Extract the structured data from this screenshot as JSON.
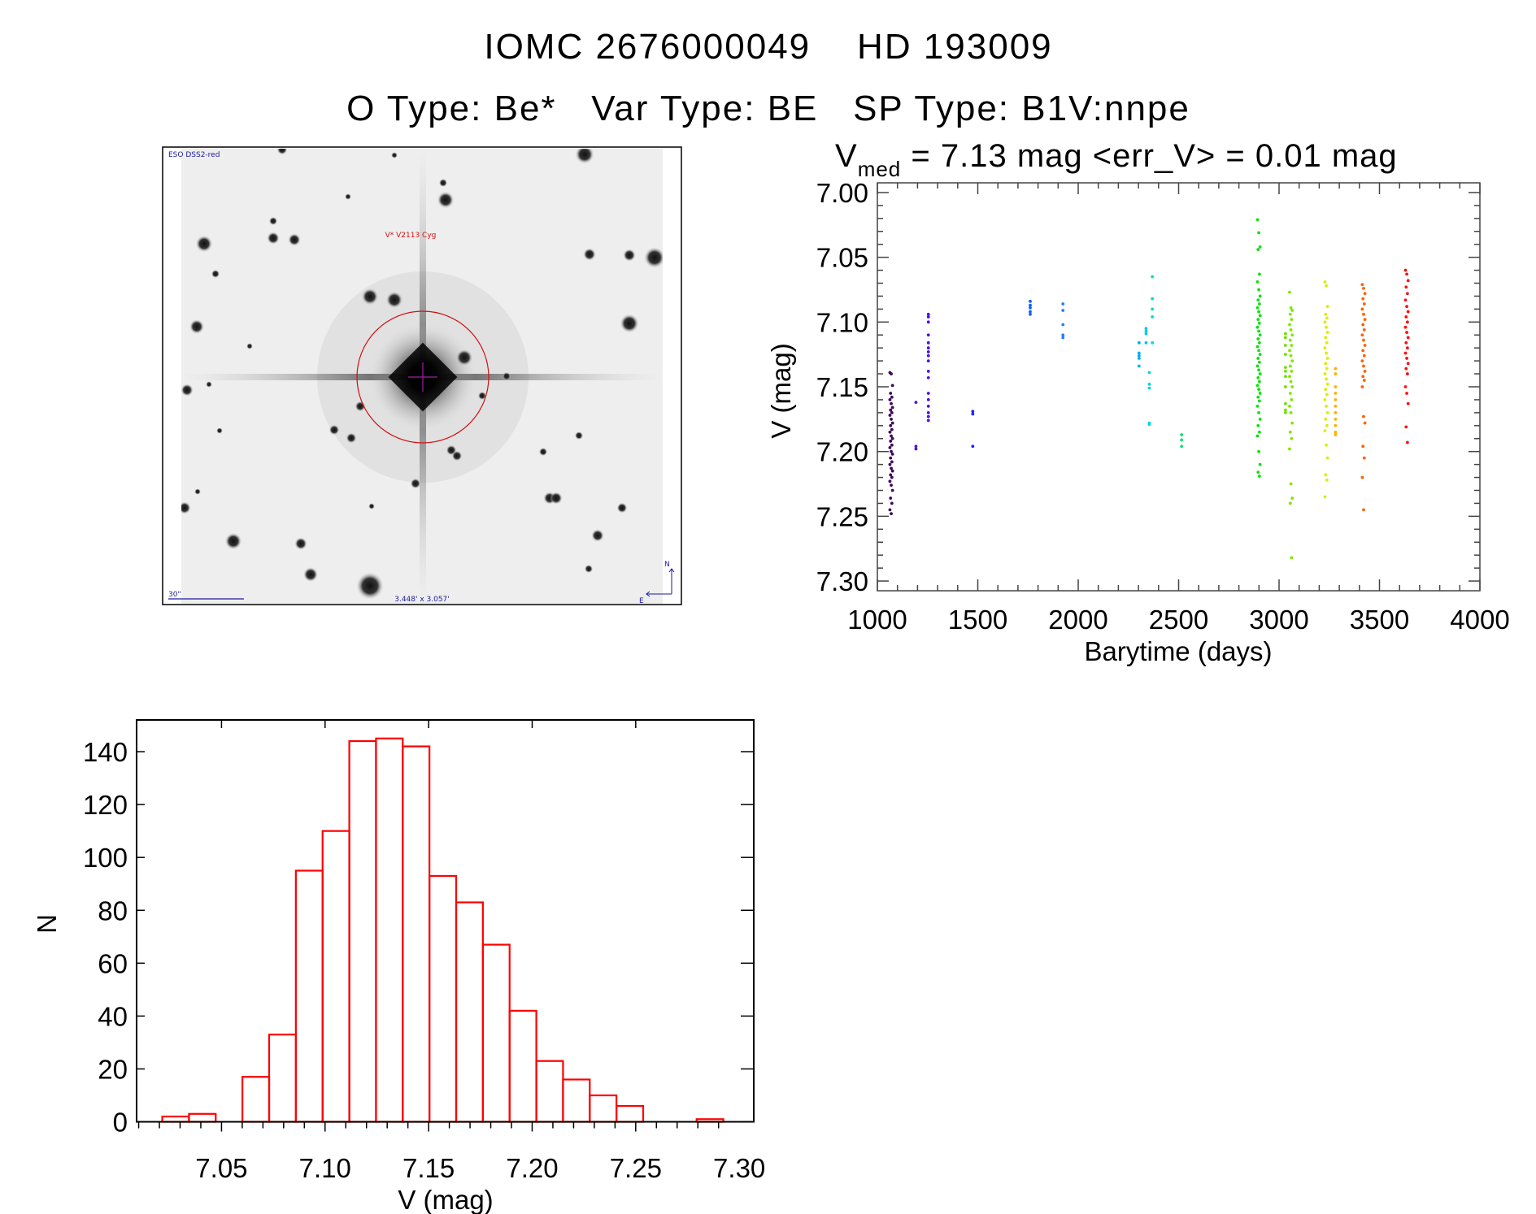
{
  "header": {
    "title": "IOMC 2676000049    HD 193009",
    "subtitle": "O Type: Be*   Var Type: BE   SP Type: B1V:nnpe"
  },
  "finder_chart": {
    "survey_label": "ESO DSS2-red",
    "target_label": "V* V2113 Cyg",
    "scale_label": "30\"",
    "fov_label": "3.448' x 3.057'",
    "north_label": "N",
    "east_label": "E"
  },
  "chart_data": [
    {
      "type": "scatter",
      "title_prefix": "V",
      "title_sub": "med",
      "title_rest": " = 7.13 mag <err_V> = 0.01 mag",
      "xlabel": "Barytime (days)",
      "ylabel": "V (mag)",
      "xlim": [
        1000,
        4000
      ],
      "ylim": [
        6.9925,
        7.3075
      ],
      "y_inverted": true,
      "xticks": [
        "1000",
        "1500",
        "2000",
        "2500",
        "3000",
        "3500",
        "4000"
      ],
      "yticks": [
        "7.00",
        "7.05",
        "7.10",
        "7.15",
        "7.20",
        "7.25",
        "7.30"
      ],
      "series": [
        {
          "t": 1069,
          "color": "#3c0a5a",
          "v": [
            7.139,
            7.14,
            7.149,
            7.155,
            7.158,
            7.16,
            7.163,
            7.166,
            7.168,
            7.17,
            7.172,
            7.175,
            7.178,
            7.18,
            7.183,
            7.185,
            7.188,
            7.19,
            7.192,
            7.195,
            7.197,
            7.2,
            7.202,
            7.205,
            7.208,
            7.21,
            7.213,
            7.215,
            7.218,
            7.22,
            7.223,
            7.226,
            7.23,
            7.236,
            7.24,
            7.245,
            7.248
          ]
        },
        {
          "t": 1192,
          "color": "#5a10c0",
          "v": [
            7.162,
            7.196,
            7.198
          ]
        },
        {
          "t": 1254,
          "color": "#4a10e0",
          "v": [
            7.094,
            7.096,
            7.1,
            7.11,
            7.116,
            7.12,
            7.123,
            7.126,
            7.13,
            7.138,
            7.143,
            7.155,
            7.16,
            7.165,
            7.17,
            7.173,
            7.176
          ]
        },
        {
          "t": 1475,
          "color": "#2020ff",
          "v": [
            7.169,
            7.171,
            7.196
          ]
        },
        {
          "t": 1761,
          "color": "#1060ff",
          "v": [
            7.084,
            7.087,
            7.089,
            7.092,
            7.094
          ]
        },
        {
          "t": 1924,
          "color": "#2080ff",
          "v": [
            7.086,
            7.091,
            7.102,
            7.11,
            7.112
          ]
        },
        {
          "t": 2303,
          "color": "#00b0f0",
          "v": [
            7.116,
            7.124,
            7.126,
            7.128,
            7.134
          ]
        },
        {
          "t": 2338,
          "color": "#00c8f0",
          "v": [
            7.105,
            7.107,
            7.109,
            7.116
          ]
        },
        {
          "t": 2354,
          "color": "#00d8e0",
          "v": [
            7.139,
            7.148,
            7.151,
            7.178,
            7.179
          ]
        },
        {
          "t": 2369,
          "color": "#00e0c8",
          "v": [
            7.065,
            7.082,
            7.09,
            7.096,
            7.116
          ]
        },
        {
          "t": 2515,
          "color": "#00e070",
          "v": [
            7.187,
            7.191,
            7.196
          ]
        },
        {
          "t": 2899,
          "color": "#10e010",
          "v": [
            7.021,
            7.031,
            7.042,
            7.044,
            7.063,
            7.069,
            7.075,
            7.08,
            7.083,
            7.086,
            7.089,
            7.092,
            7.095,
            7.098,
            7.101,
            7.104,
            7.107,
            7.11,
            7.113,
            7.116,
            7.119,
            7.122,
            7.125,
            7.128,
            7.131,
            7.134,
            7.137,
            7.14,
            7.143,
            7.146,
            7.149,
            7.152,
            7.155,
            7.158,
            7.161,
            7.165,
            7.17,
            7.175,
            7.18,
            7.185,
            7.188,
            7.2,
            7.21,
            7.216,
            7.219
          ]
        },
        {
          "t": 3032,
          "color": "#70e000",
          "v": [
            7.109,
            7.112,
            7.118,
            7.125,
            7.135,
            7.138,
            7.142,
            7.15,
            7.163,
            7.168,
            7.17
          ]
        },
        {
          "t": 3059,
          "color": "#80e800",
          "v": [
            7.077,
            7.089,
            7.091,
            7.094,
            7.098,
            7.102,
            7.106,
            7.11,
            7.114,
            7.118,
            7.122,
            7.126,
            7.13,
            7.134,
            7.138,
            7.142,
            7.146,
            7.15,
            7.155,
            7.16,
            7.165,
            7.17,
            7.178,
            7.185,
            7.19,
            7.198,
            7.225,
            7.236,
            7.24,
            7.282
          ]
        },
        {
          "t": 3235,
          "color": "#d8f000",
          "v": [
            7.069,
            7.072,
            7.088,
            7.094,
            7.097,
            7.1,
            7.104,
            7.108,
            7.112,
            7.116,
            7.12,
            7.124,
            7.128,
            7.132,
            7.136,
            7.14,
            7.144,
            7.148,
            7.152,
            7.156,
            7.16,
            7.165,
            7.17,
            7.175,
            7.18,
            7.184,
            7.195,
            7.205,
            7.218,
            7.222,
            7.235
          ]
        },
        {
          "t": 3281,
          "color": "#ffb000",
          "v": [
            7.136,
            7.14,
            7.15,
            7.155,
            7.16,
            7.165,
            7.17,
            7.175,
            7.18,
            7.185,
            7.187
          ]
        },
        {
          "t": 3421,
          "color": "#ff6000",
          "v": [
            7.071,
            7.074,
            7.078,
            7.082,
            7.086,
            7.09,
            7.094,
            7.098,
            7.102,
            7.106,
            7.11,
            7.114,
            7.118,
            7.122,
            7.126,
            7.13,
            7.134,
            7.138,
            7.142,
            7.145,
            7.15,
            7.173,
            7.178,
            7.196,
            7.205,
            7.22,
            7.245
          ]
        },
        {
          "t": 3636,
          "color": "#ff1010",
          "v": [
            7.06,
            7.063,
            7.068,
            7.073,
            7.078,
            7.083,
            7.088,
            7.092,
            7.096,
            7.1,
            7.104,
            7.108,
            7.112,
            7.116,
            7.12,
            7.124,
            7.128,
            7.132,
            7.136,
            7.14,
            7.15,
            7.155,
            7.163,
            7.181,
            7.193
          ]
        }
      ]
    },
    {
      "type": "bar",
      "style": "histogram",
      "xlabel": "V (mag)",
      "ylabel": "N",
      "xlim": [
        7.009,
        7.307
      ],
      "ylim": [
        -2.6,
        152
      ],
      "xticks": [
        "7.05",
        "7.10",
        "7.15",
        "7.20",
        "7.25",
        "7.30"
      ],
      "yticks": [
        "0",
        "20",
        "40",
        "60",
        "80",
        "100",
        "120",
        "140"
      ],
      "bin_start": 7.0214,
      "bin_width": 0.0129,
      "counts": [
        2,
        3,
        0,
        17,
        33,
        95,
        110,
        144,
        145,
        142,
        93,
        83,
        67,
        42,
        23,
        16,
        10,
        6,
        0,
        0,
        1
      ],
      "color": "#ff0000"
    }
  ]
}
